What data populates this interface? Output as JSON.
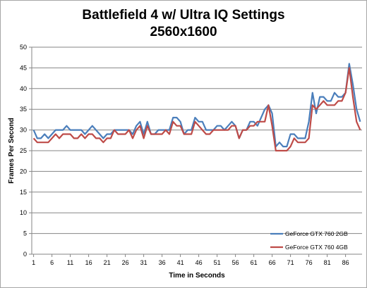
{
  "chart_data": {
    "type": "line",
    "title": "Battlefield 4 w/ Ultra IQ Settings",
    "subtitle": "2560x1600",
    "xlabel": "Time in Seconds",
    "ylabel": "Frames Per Second",
    "ylim": [
      0,
      50
    ],
    "y_ticks": [
      0,
      5,
      10,
      15,
      20,
      25,
      30,
      35,
      40,
      45,
      50
    ],
    "x_tick_labels": [
      "1",
      "6",
      "11",
      "16",
      "21",
      "26",
      "31",
      "36",
      "41",
      "46",
      "51",
      "56",
      "61",
      "66",
      "71",
      "76",
      "81",
      "86"
    ],
    "x_start": 1,
    "x_end": 90,
    "grid": "horizontal",
    "legend_position": "bottom-right",
    "series": [
      {
        "name": "GeForce GTX 760 2GB",
        "color": "#4a7ebb",
        "values": [
          30,
          28,
          28,
          29,
          28,
          29,
          30,
          30,
          30,
          31,
          30,
          30,
          30,
          30,
          29,
          30,
          31,
          30,
          29,
          28,
          29,
          29,
          30,
          30,
          30,
          30,
          30,
          29,
          31,
          32,
          29,
          32,
          29,
          29,
          30,
          30,
          30,
          30,
          33,
          33,
          32,
          29,
          30,
          30,
          33,
          32,
          32,
          30,
          30,
          30,
          31,
          31,
          30,
          31,
          32,
          31,
          28,
          30,
          30,
          32,
          32,
          31,
          33,
          35,
          36,
          34,
          26,
          27,
          26,
          26,
          29,
          29,
          28,
          28,
          28,
          32,
          39,
          34,
          38,
          38,
          37,
          37,
          39,
          38,
          38,
          39,
          46,
          41,
          35,
          32
        ]
      },
      {
        "name": "GeForce GTX 760 4GB",
        "color": "#be4b48",
        "values": [
          28,
          27,
          27,
          27,
          27,
          28,
          29,
          28,
          29,
          29,
          29,
          28,
          28,
          29,
          28,
          29,
          29,
          28,
          28,
          27,
          28,
          28,
          30,
          29,
          29,
          29,
          30,
          28,
          30,
          31,
          28,
          31,
          29,
          29,
          29,
          29,
          30,
          29,
          32,
          31,
          31,
          29,
          29,
          29,
          32,
          31,
          30,
          29,
          29,
          30,
          30,
          30,
          30,
          30,
          31,
          31,
          28,
          30,
          30,
          31,
          31,
          32,
          32,
          32,
          36,
          31,
          25,
          25,
          25,
          25,
          26,
          28,
          27,
          27,
          27,
          28,
          36,
          35,
          36,
          37,
          36,
          36,
          36,
          37,
          37,
          39,
          45,
          38,
          32,
          30
        ]
      }
    ]
  }
}
